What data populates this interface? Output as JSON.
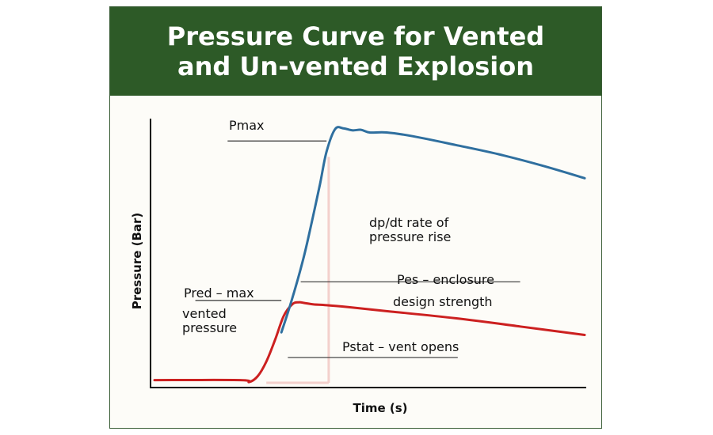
{
  "title": "Pressure Curve for Vented and Un-vented Explosion",
  "colors": {
    "header_bg": "#2d5a27",
    "unvented": "#2f6f9f",
    "vented": "#cc2020",
    "vent_shade": "#f3d0cc"
  },
  "chart_data": {
    "type": "line",
    "xlabel": "Time (s)",
    "ylabel": "Pressure (Bar)",
    "xlim": [
      0,
      100
    ],
    "ylim": [
      0,
      100
    ],
    "grid": false,
    "series": [
      {
        "color": "#2f6f9f",
        "x": [
          29.5,
          31.7,
          34.5,
          36.5,
          38.5,
          40.0,
          42.0,
          44.0,
          46.0,
          48.0,
          50.0,
          54.0,
          60.0,
          70.0,
          80.0,
          90.0,
          100.0
        ],
        "y": [
          19.0,
          30.0,
          46.0,
          60.0,
          75.0,
          87.0,
          95.5,
          95.7,
          95.0,
          95.2,
          94.2,
          94.2,
          92.8,
          89.5,
          86.0,
          81.8,
          77.0
        ]
      },
      {
        "color": "#cc2020",
        "x": [
          0,
          20.0,
          22.0,
          24.0,
          26.0,
          28.0,
          30.0,
          32.0,
          33.5,
          35.0,
          37.0,
          40.0,
          45.0,
          55.0,
          70.0,
          85.0,
          100.0
        ],
        "y": [
          1.0,
          1.0,
          0.3,
          2.5,
          8.0,
          16.0,
          25.0,
          29.5,
          30.3,
          30.0,
          29.5,
          29.2,
          28.5,
          26.8,
          24.3,
          21.2,
          18.0
        ]
      }
    ],
    "vent_region": {
      "x": [
        26.0,
        40.5
      ]
    },
    "annotations": [
      {
        "text": "Pmax",
        "line": {
          "x": [
            17.0,
            40.0
          ],
          "y": 91.0
        }
      },
      {
        "text": "dp/dt rate of",
        "text2": "pressure rise"
      },
      {
        "text": "Pred – max",
        "line": {
          "x": [
            9.5,
            29.5
          ],
          "y": 31.0
        },
        "text2": "vented",
        "text3": "pressure"
      },
      {
        "text": "Pes – enclosure",
        "line": {
          "x": [
            34.0,
            85.0
          ],
          "y": 38.0
        },
        "text2": "design strength"
      },
      {
        "text": "Pstat – vent opens",
        "line": {
          "x": [
            31.0,
            70.5
          ],
          "y": 9.5
        }
      }
    ]
  }
}
